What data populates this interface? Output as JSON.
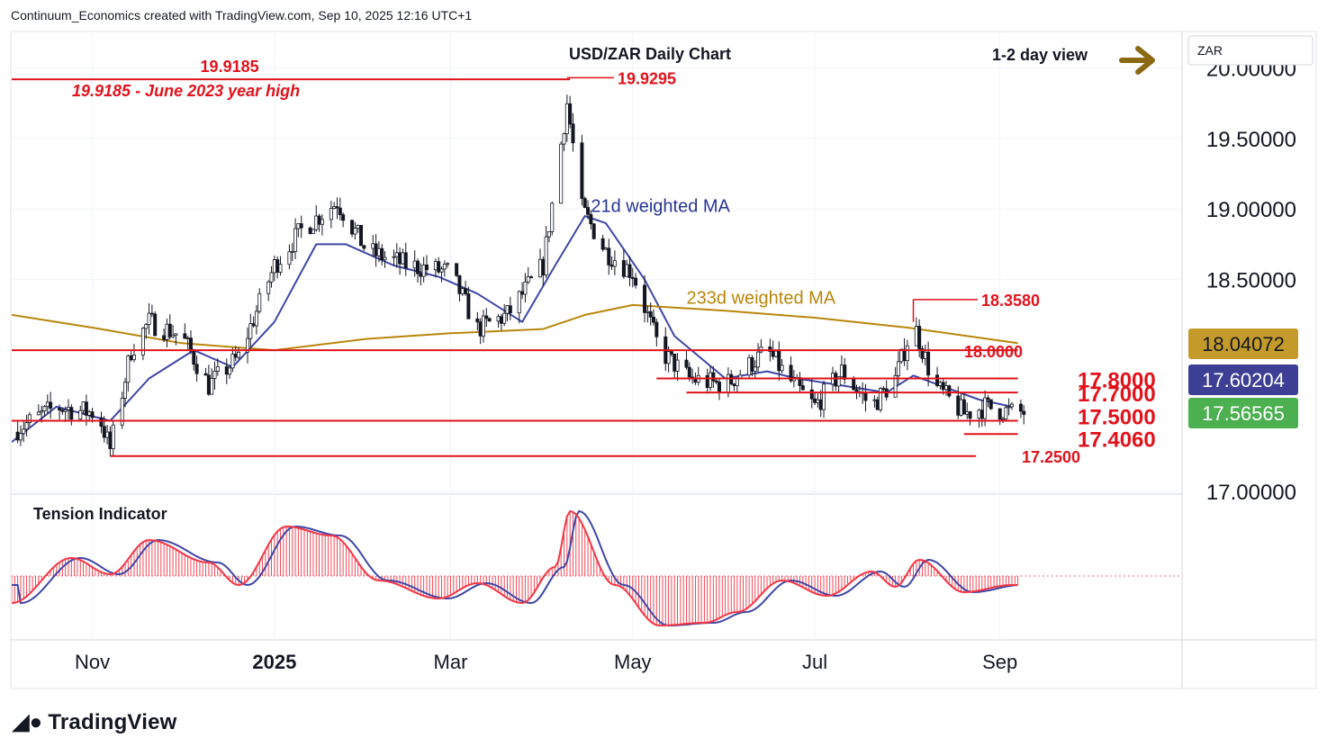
{
  "header": {
    "credit": "Continuum_Economics created with TradingView.com, Sep 10, 2025 12:16 UTC+1"
  },
  "branding": {
    "logo_text": "TradingView"
  },
  "chart_data": {
    "type": "candlestick",
    "title": "USD/ZAR Daily Chart",
    "view_label": "1-2 day view",
    "currency": "ZAR",
    "ylim": [
      17.0,
      20.1
    ],
    "y_ticks": [
      {
        "value": 20.0,
        "label": "20.00000"
      },
      {
        "value": 19.5,
        "label": "19.50000"
      },
      {
        "value": 19.0,
        "label": "19.00000"
      },
      {
        "value": 18.5,
        "label": "18.50000"
      },
      {
        "value": 17.0,
        "label": "17.00000"
      }
    ],
    "x_ticks": [
      {
        "date": "2024-11-01",
        "label": "Nov"
      },
      {
        "date": "2025-01-01",
        "label": "2025"
      },
      {
        "date": "2025-03-01",
        "label": "Mar"
      },
      {
        "date": "2025-05-01",
        "label": "May"
      },
      {
        "date": "2025-07-01",
        "label": "Jul"
      },
      {
        "date": "2025-09-01",
        "label": "Sep"
      }
    ],
    "x_range": [
      "2024-10-05",
      "2025-11-01"
    ],
    "price_badges": [
      {
        "value": 18.04072,
        "label": "18.04072",
        "color": "#c49b2a"
      },
      {
        "value": 17.60204,
        "label": "17.60204",
        "color": "#3d3f94"
      },
      {
        "value": 17.56565,
        "label": "17.56565",
        "color": "#4caf50"
      }
    ],
    "levels": [
      {
        "value": 19.9185,
        "label": "19.9185",
        "start": "2024-10-05",
        "end": "2025-04-10",
        "color": "#e0121b"
      },
      {
        "value": 18.0,
        "label": "18.0000",
        "start": "2024-10-05",
        "end": "2025-09-07",
        "color": "#e0121b"
      },
      {
        "value": 17.8,
        "label": "17.8000",
        "start": "2025-05-09",
        "end": "2025-09-07",
        "color": "#e0121b"
      },
      {
        "value": 17.7,
        "label": "17.7000",
        "start": "2025-05-19",
        "end": "2025-09-07",
        "color": "#e0121b"
      },
      {
        "value": 17.5,
        "label": "17.5000",
        "start": "2024-10-05",
        "end": "2025-09-07",
        "color": "#e0121b"
      },
      {
        "value": 17.406,
        "label": "17.4060",
        "start": "2025-08-20",
        "end": "2025-09-07",
        "color": "#e0121b"
      },
      {
        "value": 17.25,
        "label": "17.2500",
        "start": "2024-11-07",
        "end": "2025-08-24",
        "color": "#e0121b"
      }
    ],
    "annotations": [
      {
        "text": "19.9185 - June 2023 year high",
        "date": "2024-10-15",
        "value": 19.8,
        "color": "#e0121b"
      },
      {
        "text": "19.9295",
        "date": "2025-04-09",
        "value": 19.9295,
        "color": "#e0121b"
      },
      {
        "text": "18.3580",
        "date": "2025-08-03",
        "value": 18.358,
        "color": "#e0121b"
      },
      {
        "text": "21d weighted MA",
        "date": "2025-04-17",
        "value": 18.98,
        "color": "#283593"
      },
      {
        "text": "233d weighted MA",
        "date": "2025-05-19",
        "value": 18.33,
        "color": "#b8860b"
      }
    ],
    "series": [
      {
        "name": "21d weighted MA",
        "color": "#3f46a6",
        "points": [
          [
            "2024-10-05",
            17.35
          ],
          [
            "2024-10-20",
            17.6
          ],
          [
            "2024-11-07",
            17.5
          ],
          [
            "2024-11-20",
            17.8
          ],
          [
            "2024-12-05",
            18.0
          ],
          [
            "2024-12-18",
            17.88
          ],
          [
            "2025-01-01",
            18.2
          ],
          [
            "2025-01-15",
            18.75
          ],
          [
            "2025-01-25",
            18.75
          ],
          [
            "2025-02-10",
            18.6
          ],
          [
            "2025-02-25",
            18.52
          ],
          [
            "2025-03-10",
            18.4
          ],
          [
            "2025-03-25",
            18.2
          ],
          [
            "2025-04-05",
            18.6
          ],
          [
            "2025-04-15",
            18.95
          ],
          [
            "2025-04-22",
            18.9
          ],
          [
            "2025-05-05",
            18.5
          ],
          [
            "2025-05-15",
            18.1
          ],
          [
            "2025-06-01",
            17.8
          ],
          [
            "2025-06-15",
            17.85
          ],
          [
            "2025-06-25",
            17.8
          ],
          [
            "2025-07-10",
            17.75
          ],
          [
            "2025-07-25",
            17.7
          ],
          [
            "2025-08-03",
            17.82
          ],
          [
            "2025-08-12",
            17.75
          ],
          [
            "2025-08-25",
            17.65
          ],
          [
            "2025-09-05",
            17.6
          ]
        ]
      },
      {
        "name": "233d weighted MA",
        "color": "#b8860b",
        "points": [
          [
            "2024-10-05",
            18.25
          ],
          [
            "2024-11-01",
            18.16
          ],
          [
            "2024-12-01",
            18.05
          ],
          [
            "2025-01-01",
            18.0
          ],
          [
            "2025-02-01",
            18.08
          ],
          [
            "2025-03-01",
            18.12
          ],
          [
            "2025-04-01",
            18.15
          ],
          [
            "2025-04-15",
            18.25
          ],
          [
            "2025-05-01",
            18.32
          ],
          [
            "2025-06-01",
            18.28
          ],
          [
            "2025-07-01",
            18.23
          ],
          [
            "2025-08-01",
            18.16
          ],
          [
            "2025-09-07",
            18.05
          ]
        ]
      }
    ],
    "price_path": [
      [
        "2024-10-05",
        17.42
      ],
      [
        "2024-10-20",
        17.6
      ],
      [
        "2024-11-03",
        17.55
      ],
      [
        "2024-11-07",
        17.3
      ],
      [
        "2024-11-14",
        18.0
      ],
      [
        "2024-11-20",
        18.2
      ],
      [
        "2024-12-01",
        18.1
      ],
      [
        "2024-12-10",
        17.75
      ],
      [
        "2024-12-20",
        17.95
      ],
      [
        "2025-01-01",
        18.6
      ],
      [
        "2025-01-10",
        18.85
      ],
      [
        "2025-01-22",
        19.05
      ],
      [
        "2025-02-01",
        18.7
      ],
      [
        "2025-02-15",
        18.6
      ],
      [
        "2025-03-01",
        18.55
      ],
      [
        "2025-03-10",
        18.15
      ],
      [
        "2025-03-20",
        18.25
      ],
      [
        "2025-04-01",
        18.6
      ],
      [
        "2025-04-09",
        19.75
      ],
      [
        "2025-04-14",
        19.0
      ],
      [
        "2025-04-22",
        18.7
      ],
      [
        "2025-05-01",
        18.55
      ],
      [
        "2025-05-10",
        18.0
      ],
      [
        "2025-05-20",
        17.8
      ],
      [
        "2025-06-01",
        17.75
      ],
      [
        "2025-06-15",
        18.0
      ],
      [
        "2025-06-22",
        17.8
      ],
      [
        "2025-07-01",
        17.6
      ],
      [
        "2025-07-10",
        17.85
      ],
      [
        "2025-07-20",
        17.6
      ],
      [
        "2025-07-28",
        17.8
      ],
      [
        "2025-08-03",
        18.2
      ],
      [
        "2025-08-10",
        17.75
      ],
      [
        "2025-08-20",
        17.55
      ],
      [
        "2025-08-27",
        17.6
      ],
      [
        "2025-09-05",
        17.56
      ]
    ],
    "tension_indicator": {
      "title": "Tension Indicator",
      "fast_color": "#f23645",
      "slow_color": "#3f46a6",
      "hist_color": "#f23645",
      "points": [
        [
          "2024-10-05",
          -0.3
        ],
        [
          "2024-10-25",
          0.2
        ],
        [
          "2024-11-07",
          0.02
        ],
        [
          "2024-11-20",
          0.4
        ],
        [
          "2024-12-10",
          0.15
        ],
        [
          "2024-12-20",
          -0.1
        ],
        [
          "2025-01-05",
          0.55
        ],
        [
          "2025-01-20",
          0.45
        ],
        [
          "2025-02-05",
          -0.05
        ],
        [
          "2025-02-25",
          -0.25
        ],
        [
          "2025-03-10",
          -0.08
        ],
        [
          "2025-03-25",
          -0.3
        ],
        [
          "2025-04-05",
          0.1
        ],
        [
          "2025-04-10",
          0.72
        ],
        [
          "2025-04-25",
          -0.1
        ],
        [
          "2025-05-10",
          -0.55
        ],
        [
          "2025-05-25",
          -0.52
        ],
        [
          "2025-06-05",
          -0.4
        ],
        [
          "2025-06-20",
          -0.05
        ],
        [
          "2025-07-05",
          -0.22
        ],
        [
          "2025-07-20",
          0.05
        ],
        [
          "2025-07-28",
          -0.12
        ],
        [
          "2025-08-05",
          0.18
        ],
        [
          "2025-08-20",
          -0.18
        ],
        [
          "2025-09-05",
          -0.1
        ]
      ]
    }
  }
}
